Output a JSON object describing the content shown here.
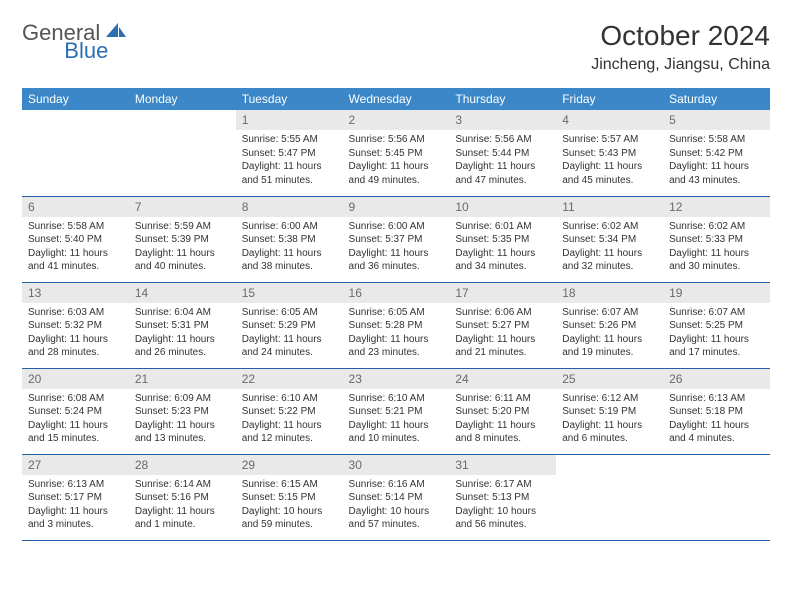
{
  "logo": {
    "text1": "General",
    "text2": "Blue"
  },
  "title": "October 2024",
  "location": "Jincheng, Jiangsu, China",
  "colors": {
    "header_bg": "#3b87c8",
    "header_text": "#ffffff",
    "daynum_bg": "#e9e9e9",
    "daynum_text": "#6a6a6a",
    "row_border": "#2360a5",
    "logo_gray": "#555555",
    "logo_blue": "#2b6fb3"
  },
  "day_names": [
    "Sunday",
    "Monday",
    "Tuesday",
    "Wednesday",
    "Thursday",
    "Friday",
    "Saturday"
  ],
  "weeks": [
    [
      {
        "n": "",
        "sr": "",
        "ss": "",
        "dl": "",
        "empty": true
      },
      {
        "n": "",
        "sr": "",
        "ss": "",
        "dl": "",
        "empty": true
      },
      {
        "n": "1",
        "sr": "Sunrise: 5:55 AM",
        "ss": "Sunset: 5:47 PM",
        "dl": "Daylight: 11 hours and 51 minutes."
      },
      {
        "n": "2",
        "sr": "Sunrise: 5:56 AM",
        "ss": "Sunset: 5:45 PM",
        "dl": "Daylight: 11 hours and 49 minutes."
      },
      {
        "n": "3",
        "sr": "Sunrise: 5:56 AM",
        "ss": "Sunset: 5:44 PM",
        "dl": "Daylight: 11 hours and 47 minutes."
      },
      {
        "n": "4",
        "sr": "Sunrise: 5:57 AM",
        "ss": "Sunset: 5:43 PM",
        "dl": "Daylight: 11 hours and 45 minutes."
      },
      {
        "n": "5",
        "sr": "Sunrise: 5:58 AM",
        "ss": "Sunset: 5:42 PM",
        "dl": "Daylight: 11 hours and 43 minutes."
      }
    ],
    [
      {
        "n": "6",
        "sr": "Sunrise: 5:58 AM",
        "ss": "Sunset: 5:40 PM",
        "dl": "Daylight: 11 hours and 41 minutes."
      },
      {
        "n": "7",
        "sr": "Sunrise: 5:59 AM",
        "ss": "Sunset: 5:39 PM",
        "dl": "Daylight: 11 hours and 40 minutes."
      },
      {
        "n": "8",
        "sr": "Sunrise: 6:00 AM",
        "ss": "Sunset: 5:38 PM",
        "dl": "Daylight: 11 hours and 38 minutes."
      },
      {
        "n": "9",
        "sr": "Sunrise: 6:00 AM",
        "ss": "Sunset: 5:37 PM",
        "dl": "Daylight: 11 hours and 36 minutes."
      },
      {
        "n": "10",
        "sr": "Sunrise: 6:01 AM",
        "ss": "Sunset: 5:35 PM",
        "dl": "Daylight: 11 hours and 34 minutes."
      },
      {
        "n": "11",
        "sr": "Sunrise: 6:02 AM",
        "ss": "Sunset: 5:34 PM",
        "dl": "Daylight: 11 hours and 32 minutes."
      },
      {
        "n": "12",
        "sr": "Sunrise: 6:02 AM",
        "ss": "Sunset: 5:33 PM",
        "dl": "Daylight: 11 hours and 30 minutes."
      }
    ],
    [
      {
        "n": "13",
        "sr": "Sunrise: 6:03 AM",
        "ss": "Sunset: 5:32 PM",
        "dl": "Daylight: 11 hours and 28 minutes."
      },
      {
        "n": "14",
        "sr": "Sunrise: 6:04 AM",
        "ss": "Sunset: 5:31 PM",
        "dl": "Daylight: 11 hours and 26 minutes."
      },
      {
        "n": "15",
        "sr": "Sunrise: 6:05 AM",
        "ss": "Sunset: 5:29 PM",
        "dl": "Daylight: 11 hours and 24 minutes."
      },
      {
        "n": "16",
        "sr": "Sunrise: 6:05 AM",
        "ss": "Sunset: 5:28 PM",
        "dl": "Daylight: 11 hours and 23 minutes."
      },
      {
        "n": "17",
        "sr": "Sunrise: 6:06 AM",
        "ss": "Sunset: 5:27 PM",
        "dl": "Daylight: 11 hours and 21 minutes."
      },
      {
        "n": "18",
        "sr": "Sunrise: 6:07 AM",
        "ss": "Sunset: 5:26 PM",
        "dl": "Daylight: 11 hours and 19 minutes."
      },
      {
        "n": "19",
        "sr": "Sunrise: 6:07 AM",
        "ss": "Sunset: 5:25 PM",
        "dl": "Daylight: 11 hours and 17 minutes."
      }
    ],
    [
      {
        "n": "20",
        "sr": "Sunrise: 6:08 AM",
        "ss": "Sunset: 5:24 PM",
        "dl": "Daylight: 11 hours and 15 minutes."
      },
      {
        "n": "21",
        "sr": "Sunrise: 6:09 AM",
        "ss": "Sunset: 5:23 PM",
        "dl": "Daylight: 11 hours and 13 minutes."
      },
      {
        "n": "22",
        "sr": "Sunrise: 6:10 AM",
        "ss": "Sunset: 5:22 PM",
        "dl": "Daylight: 11 hours and 12 minutes."
      },
      {
        "n": "23",
        "sr": "Sunrise: 6:10 AM",
        "ss": "Sunset: 5:21 PM",
        "dl": "Daylight: 11 hours and 10 minutes."
      },
      {
        "n": "24",
        "sr": "Sunrise: 6:11 AM",
        "ss": "Sunset: 5:20 PM",
        "dl": "Daylight: 11 hours and 8 minutes."
      },
      {
        "n": "25",
        "sr": "Sunrise: 6:12 AM",
        "ss": "Sunset: 5:19 PM",
        "dl": "Daylight: 11 hours and 6 minutes."
      },
      {
        "n": "26",
        "sr": "Sunrise: 6:13 AM",
        "ss": "Sunset: 5:18 PM",
        "dl": "Daylight: 11 hours and 4 minutes."
      }
    ],
    [
      {
        "n": "27",
        "sr": "Sunrise: 6:13 AM",
        "ss": "Sunset: 5:17 PM",
        "dl": "Daylight: 11 hours and 3 minutes."
      },
      {
        "n": "28",
        "sr": "Sunrise: 6:14 AM",
        "ss": "Sunset: 5:16 PM",
        "dl": "Daylight: 11 hours and 1 minute."
      },
      {
        "n": "29",
        "sr": "Sunrise: 6:15 AM",
        "ss": "Sunset: 5:15 PM",
        "dl": "Daylight: 10 hours and 59 minutes."
      },
      {
        "n": "30",
        "sr": "Sunrise: 6:16 AM",
        "ss": "Sunset: 5:14 PM",
        "dl": "Daylight: 10 hours and 57 minutes."
      },
      {
        "n": "31",
        "sr": "Sunrise: 6:17 AM",
        "ss": "Sunset: 5:13 PM",
        "dl": "Daylight: 10 hours and 56 minutes."
      },
      {
        "n": "",
        "sr": "",
        "ss": "",
        "dl": "",
        "empty": true
      },
      {
        "n": "",
        "sr": "",
        "ss": "",
        "dl": "",
        "empty": true
      }
    ]
  ]
}
